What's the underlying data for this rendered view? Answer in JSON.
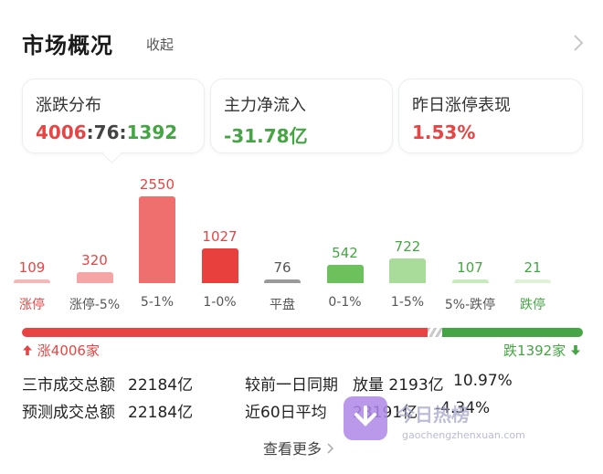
{
  "header": {
    "title": "市场概况",
    "collapse_label": "收起"
  },
  "cards": [
    {
      "label": "涨跌分布",
      "up": "4006",
      "sep1": ":",
      "flat": "76",
      "sep2": ":",
      "down": "1392"
    },
    {
      "label": "主力净流入",
      "value": "-31.78亿"
    },
    {
      "label": "昨日涨停表现",
      "value": "1.53%"
    }
  ],
  "distribution": [
    {
      "label": "涨停",
      "count": 109,
      "count_text": "109",
      "label_color": "#e94444",
      "color": "#f5b7b7"
    },
    {
      "label": "涨停-5%",
      "count": 320,
      "count_text": "320",
      "label_color": "#555555",
      "color": "#f5a5a5"
    },
    {
      "label": "5-1%",
      "count": 2550,
      "count_text": "2550",
      "label_color": "#555555",
      "color": "#ef6f6f"
    },
    {
      "label": "1-0%",
      "count": 1027,
      "count_text": "1027",
      "label_color": "#555555",
      "color": "#e8403c"
    },
    {
      "label": "平盘",
      "count": 76,
      "count_text": "76",
      "label_color": "#555555",
      "color": "#9a9a9a"
    },
    {
      "label": "0-1%",
      "count": 542,
      "count_text": "542",
      "label_color": "#555555",
      "color": "#6cc15c"
    },
    {
      "label": "1-5%",
      "count": 722,
      "count_text": "722",
      "label_color": "#555555",
      "color": "#a9dc9b"
    },
    {
      "label": "5%-跌停",
      "count": 107,
      "count_text": "107",
      "label_color": "#555555",
      "color": "#c7eabd"
    },
    {
      "label": "跌停",
      "count": 21,
      "count_text": "21",
      "label_color": "#45a544",
      "color": "#dff2d8"
    }
  ],
  "summary": {
    "up_text": "涨4006家",
    "down_text": "跌1392家",
    "up_count": 4006,
    "flat_count": 76,
    "down_count": 1392
  },
  "stats": {
    "turnover_label": "三市成交总额",
    "turnover_value": "22184亿",
    "forecast_label": "预测成交总额",
    "forecast_value": "22184亿",
    "compare_label": "较前一日同期",
    "compare_value": "放量 2193亿",
    "compare_pct": "10.97%",
    "avg_label": "近60日平均",
    "avg_value": "23191亿",
    "avg_pct": "-4.34%"
  },
  "more_label": "查看更多",
  "watermark": {
    "title": "今日热榜",
    "url": "gaochengzhenxuan.com"
  },
  "colors": {
    "up": "#e94444",
    "down": "#45a544"
  }
}
